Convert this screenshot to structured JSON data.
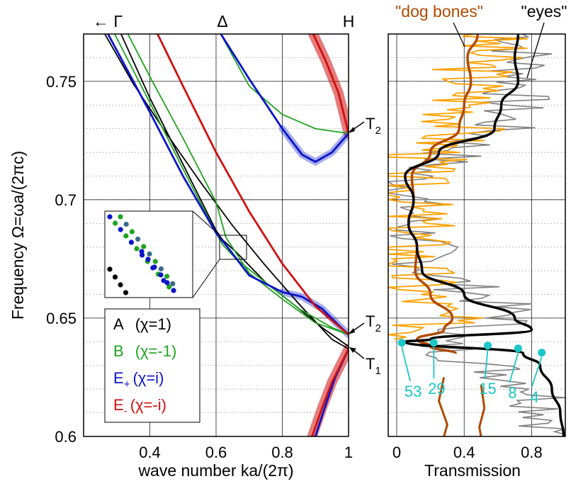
{
  "chart_data": [
    {
      "type": "line",
      "title": "",
      "xlabel": "wave number ka/(2π)",
      "ylabel": "Frequency Ω=ωa/(2πc)",
      "xlim": [
        0.2,
        1.0
      ],
      "ylim": [
        0.6,
        0.77
      ],
      "xticks": [
        0.4,
        0.6,
        0.8,
        1
      ],
      "xtick_labels": [
        "0.4",
        "0.6",
        "0.8",
        "1"
      ],
      "yticks": [
        0.6,
        0.65,
        0.7,
        0.75
      ],
      "ytick_labels": [
        "0.6",
        "0.65",
        "0.7",
        "0.75"
      ],
      "grid": true,
      "top_labels": {
        "gamma": "← Γ",
        "delta": "Δ",
        "h": "H"
      },
      "legend": {
        "placement": "bottom-left",
        "entries": [
          {
            "name": "A",
            "chi": "(χ=1)",
            "color": "#000000"
          },
          {
            "name": "B",
            "chi": "(χ=-1)",
            "color": "#1fa31f"
          },
          {
            "name": "E",
            "sub": "+",
            "chi": "(χ=i)",
            "color": "#0a14c8"
          },
          {
            "name": "E",
            "sub": "-",
            "chi": "(χ=-i)",
            "color": "#d01010"
          }
        ]
      },
      "annotations": [
        {
          "text": "T",
          "sub": "2",
          "x": 1.0,
          "y": 0.728
        },
        {
          "text": "T",
          "sub": "2",
          "x": 1.0,
          "y": 0.643
        },
        {
          "text": "T",
          "sub": "1",
          "x": 1.0,
          "y": 0.637
        }
      ],
      "series": [
        {
          "name": "A",
          "color": "#000000",
          "x": [
            0.26,
            0.35,
            0.45,
            0.55,
            0.65,
            0.75,
            0.85,
            0.95,
            1.0
          ],
          "y": [
            0.771,
            0.749,
            0.728,
            0.708,
            0.689,
            0.672,
            0.656,
            0.641,
            0.637
          ]
        },
        {
          "name": "A-upper",
          "color": "#000000",
          "x": [
            0.31,
            0.4,
            0.5,
            0.6,
            0.62,
            0.66,
            0.75,
            0.85,
            0.92,
            1.0
          ],
          "y": [
            0.771,
            0.743,
            0.715,
            0.687,
            0.683,
            0.678,
            0.665,
            0.654,
            0.646,
            0.638
          ]
        },
        {
          "name": "B-lower",
          "color": "#1fa31f",
          "x": [
            0.29,
            0.4,
            0.5,
            0.6,
            0.62,
            0.66,
            0.75,
            0.85,
            0.95,
            1.0
          ],
          "y": [
            0.771,
            0.741,
            0.713,
            0.686,
            0.681,
            0.675,
            0.665,
            0.654,
            0.646,
            0.643
          ]
        },
        {
          "name": "B-lower-2",
          "color": "#1fa31f",
          "x": [
            0.33,
            0.4,
            0.5,
            0.6,
            0.63,
            0.7,
            0.8,
            0.9,
            1.0
          ],
          "y": [
            0.771,
            0.752,
            0.726,
            0.699,
            0.684,
            0.669,
            0.658,
            0.648,
            0.643
          ]
        },
        {
          "name": "B-upper",
          "color": "#1fa31f",
          "x": [
            0.61,
            0.7,
            0.8,
            0.9,
            0.95,
            1.0
          ],
          "y": [
            0.771,
            0.748,
            0.736,
            0.73,
            0.729,
            0.728
          ]
        },
        {
          "name": "E+ lower",
          "color": "#0a14c8",
          "x": [
            0.27,
            0.4,
            0.5,
            0.6,
            0.64,
            0.7,
            0.8,
            0.86,
            0.92,
            0.97,
            1.0
          ],
          "y": [
            0.771,
            0.737,
            0.71,
            0.686,
            0.679,
            0.668,
            0.661,
            0.659,
            0.654,
            0.647,
            0.643
          ]
        },
        {
          "name": "E+ upper",
          "color": "#0a14c8",
          "x": [
            0.61,
            0.7,
            0.8,
            0.86,
            0.9,
            0.95,
            1.0
          ],
          "y": [
            0.771,
            0.751,
            0.73,
            0.719,
            0.716,
            0.72,
            0.728
          ]
        },
        {
          "name": "E+ bottom",
          "color": "#0a14c8",
          "x": [
            0.9,
            0.93,
            0.96,
            1.0
          ],
          "y": [
            0.6,
            0.613,
            0.625,
            0.637
          ]
        },
        {
          "name": "E- lower",
          "color": "#d01010",
          "x": [
            0.42,
            0.5,
            0.6,
            0.7,
            0.8,
            0.9,
            1.0
          ],
          "y": [
            0.771,
            0.748,
            0.72,
            0.695,
            0.673,
            0.655,
            0.643
          ]
        },
        {
          "name": "E- upper",
          "color": "#d01010",
          "x": [
            0.89,
            0.93,
            0.97,
            1.0
          ],
          "y": [
            0.771,
            0.759,
            0.745,
            0.728
          ]
        },
        {
          "name": "E- bottom",
          "color": "#d01010",
          "x": [
            0.89,
            0.92,
            0.95,
            1.0
          ],
          "y": [
            0.6,
            0.612,
            0.623,
            0.637
          ]
        }
      ]
    },
    {
      "type": "line",
      "title": "",
      "xlabel": "Transmission",
      "ylabel": "",
      "xlim": [
        0.0,
        1.0
      ],
      "ylim": [
        0.6,
        0.77
      ],
      "xticks": [
        0,
        0.4,
        0.8
      ],
      "xtick_labels": [
        "0",
        "0.4",
        "0.8"
      ],
      "grid": true,
      "series_labels": [
        "\"dog bones\"",
        "\"eyes\""
      ],
      "series": [
        {
          "name": "\"dog bones\"",
          "color": "#b04a00",
          "y": [
            0.77,
            0.76,
            0.75,
            0.74,
            0.73,
            0.72,
            0.71,
            0.7,
            0.69,
            0.68,
            0.67,
            0.66,
            0.65,
            0.645,
            0.641,
            0.638,
            0.635
          ],
          "x": [
            0.48,
            0.42,
            0.44,
            0.4,
            0.37,
            0.2,
            0.09,
            0.1,
            0.07,
            0.12,
            0.11,
            0.2,
            0.33,
            0.28,
            0.12,
            0.2,
            0.35
          ]
        },
        {
          "name": "\"eyes\"",
          "color": "#000000",
          "y": [
            0.77,
            0.76,
            0.75,
            0.74,
            0.73,
            0.72,
            0.71,
            0.7,
            0.69,
            0.68,
            0.67,
            0.66,
            0.65,
            0.645,
            0.641,
            0.64,
            0.635,
            0.63,
            0.62,
            0.61,
            0.6
          ],
          "x": [
            0.72,
            0.7,
            0.72,
            0.62,
            0.58,
            0.25,
            0.05,
            0.1,
            0.07,
            0.12,
            0.15,
            0.4,
            0.7,
            0.8,
            0.2,
            0.05,
            0.75,
            0.85,
            0.92,
            0.97,
            0.99
          ]
        },
        {
          "name": "orange measurement",
          "color": "#ffa000",
          "y": [
            0.77,
            0.75,
            0.73,
            0.71,
            0.69,
            0.67,
            0.66,
            0.65,
            0.64
          ],
          "x": [
            0.55,
            0.45,
            0.4,
            0.05,
            0.1,
            0.1,
            0.15,
            0.25,
            0.15
          ]
        },
        {
          "name": "gray measurement",
          "color": "#808080",
          "y": [
            0.77,
            0.75,
            0.73,
            0.71,
            0.69,
            0.67,
            0.66,
            0.65,
            0.64,
            0.62,
            0.6
          ],
          "x": [
            0.75,
            0.75,
            0.6,
            0.1,
            0.1,
            0.2,
            0.5,
            0.7,
            0.2,
            0.85,
            0.97
          ]
        }
      ],
      "markers": [
        {
          "label": "53",
          "x": 0.03,
          "y": 0.6396
        },
        {
          "label": "29",
          "x": 0.22,
          "y": 0.6396
        },
        {
          "label": "15",
          "x": 0.54,
          "y": 0.6384
        },
        {
          "label": "8",
          "x": 0.72,
          "y": 0.6372
        },
        {
          "label": "4",
          "x": 0.86,
          "y": 0.6354
        }
      ],
      "marker_color": "#1cc7c7"
    }
  ],
  "inset": {
    "type": "scatter",
    "colors": [
      "#0a14c8",
      "#1fa31f",
      "#000000"
    ]
  }
}
